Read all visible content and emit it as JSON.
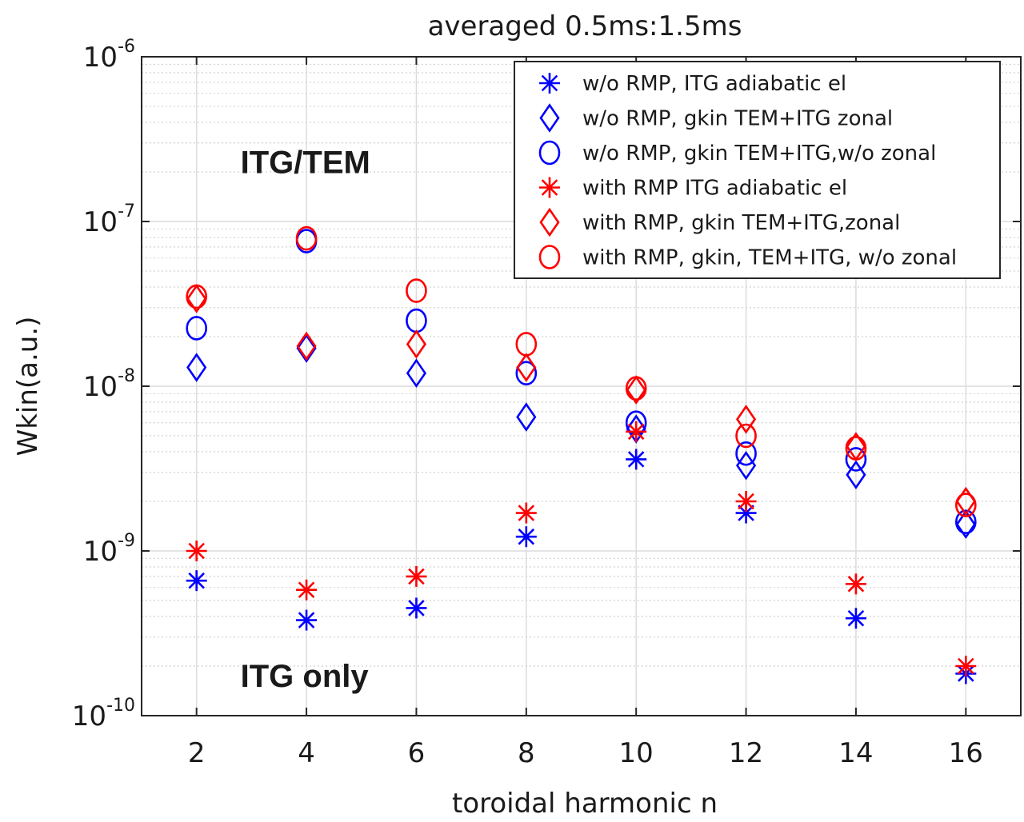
{
  "chart_data": {
    "type": "scatter",
    "title": "averaged 0.5ms:1.5ms",
    "xlabel": "toroidal harmonic n",
    "ylabel": "Wkin(a.u.)",
    "yscale": "log",
    "xlim": [
      1,
      17
    ],
    "ylim": [
      1e-10,
      1e-06
    ],
    "x_ticks": [
      2,
      4,
      6,
      8,
      10,
      12,
      14,
      16
    ],
    "y_ticks": [
      {
        "value": 1e-10,
        "base": "10",
        "exp": "-10"
      },
      {
        "value": 1e-09,
        "base": "10",
        "exp": "-9"
      },
      {
        "value": 1e-08,
        "base": "10",
        "exp": "-8"
      },
      {
        "value": 1e-07,
        "base": "10",
        "exp": "-7"
      },
      {
        "value": 1e-06,
        "base": "10",
        "exp": "-6"
      }
    ],
    "grid": true,
    "minor_grid": true,
    "legend_position": "top-right",
    "annotations": [
      {
        "text": "ITG/TEM",
        "x": 2.8,
        "y": 2.3e-07
      },
      {
        "text": "ITG only",
        "x": 2.8,
        "y": 1.75e-10
      }
    ],
    "series": [
      {
        "name": "w/o RMP, ITG adiabatic el",
        "marker": "asterisk",
        "color": "#0000ff",
        "x": [
          2,
          4,
          6,
          8,
          10,
          12,
          14,
          16
        ],
        "y": [
          6.6e-10,
          3.8e-10,
          4.5e-10,
          1.22e-09,
          3.6e-09,
          1.7e-09,
          3.9e-10,
          1.8e-10
        ]
      },
      {
        "name": "w/o RMP, gkin TEM+ITG zonal",
        "marker": "diamond",
        "color": "#0000ff",
        "x": [
          2,
          4,
          6,
          8,
          10,
          12,
          14,
          16
        ],
        "y": [
          1.3e-08,
          1.7e-08,
          1.2e-08,
          6.5e-09,
          5.5e-09,
          3.3e-09,
          2.9e-09,
          1.45e-09
        ]
      },
      {
        "name": "w/o RMP, gkin TEM+ITG,w/o zonal",
        "marker": "circle",
        "color": "#0000ff",
        "x": [
          2,
          4,
          6,
          8,
          10,
          12,
          14,
          16
        ],
        "y": [
          2.25e-08,
          7.6e-08,
          2.5e-08,
          1.2e-08,
          6e-09,
          3.9e-09,
          3.6e-09,
          1.5e-09
        ]
      },
      {
        "name": "with RMP ITG adiabatic el",
        "marker": "asterisk",
        "color": "#ff0000",
        "x": [
          2,
          4,
          6,
          8,
          10,
          12,
          14,
          16
        ],
        "y": [
          1e-09,
          5.8e-10,
          7e-10,
          1.7e-09,
          5.3e-09,
          2e-09,
          6.3e-10,
          2e-10
        ]
      },
      {
        "name": "with RMP, gkin TEM+ITG,zonal",
        "marker": "diamond",
        "color": "#ff0000",
        "x": [
          2,
          4,
          6,
          8,
          10,
          12,
          14,
          16
        ],
        "y": [
          3.4e-08,
          1.75e-08,
          1.8e-08,
          1.3e-08,
          9.5e-09,
          6.3e-09,
          4.3e-09,
          2e-09
        ]
      },
      {
        "name": "with RMP, gkin, TEM+ITG, w/o zonal",
        "marker": "circle",
        "color": "#ff0000",
        "x": [
          2,
          4,
          6,
          8,
          10,
          12,
          14,
          16
        ],
        "y": [
          3.5e-08,
          7.9e-08,
          3.8e-08,
          1.8e-08,
          9.7e-09,
          5e-09,
          4.2e-09,
          1.9e-09
        ]
      }
    ]
  }
}
